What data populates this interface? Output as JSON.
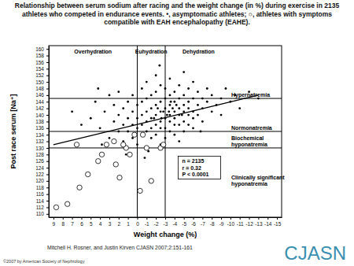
{
  "chart_data": {
    "type": "scatter",
    "title": "Relationship between serum sodium after racing and the weight change (in %) during exercise in 2135 athletes who competed in endurance events. •, asymptomatic athletes; ○, athletes with symptoms compatible with EAH encephalopathy (EAHE).",
    "x_label": "Weight change (%)",
    "y_label": "Post race serum [Na⁺]",
    "xlim": [
      9.5,
      -15.5
    ],
    "xticks": [
      9,
      8,
      7,
      6,
      5,
      4,
      3,
      2,
      1,
      0,
      -1,
      -2,
      -3,
      -4,
      -5,
      -6,
      -7,
      -8,
      -9,
      -10,
      -11,
      -12,
      -13,
      -14,
      -15
    ],
    "ylim": [
      109,
      161
    ],
    "yticks": [
      110,
      112,
      114,
      116,
      118,
      120,
      122,
      124,
      126,
      128,
      130,
      132,
      134,
      136,
      138,
      140,
      142,
      144,
      146,
      148,
      150,
      152,
      154,
      156,
      158,
      160
    ],
    "grid": false,
    "series": [
      {
        "color": "#000000",
        "marker": "dot",
        "x": [
          5,
          4.5,
          4,
          3.5,
          3,
          3,
          2.5,
          2.5,
          2,
          2,
          2,
          1.5,
          1.5,
          1.5,
          1,
          1,
          1,
          0.5,
          0.5,
          0.5,
          0.5,
          0,
          0,
          0,
          0,
          -0.5,
          -0.5,
          -0.5,
          -0.5,
          -0.5,
          -1,
          -1,
          -1,
          -1,
          -1,
          -1.5,
          -1.5,
          -1.5,
          -1.5,
          -1.5,
          -2,
          -2,
          -2,
          -2,
          -2,
          -2,
          -2.5,
          -2.5,
          -2.5,
          -2.5,
          -2.5,
          -2.5,
          -3,
          -3,
          -3,
          -3,
          -3,
          -3,
          -3.5,
          -3.5,
          -3.5,
          -3.5,
          -3.5,
          -3.5,
          -4,
          -4,
          -4,
          -4,
          -4,
          -4,
          -4.5,
          -4.5,
          -4.5,
          -4.5,
          -4.5,
          -4.5,
          -5,
          -5,
          -5,
          -5,
          -5,
          -5,
          -5.5,
          -5.5,
          -5.5,
          -5.5,
          -5.5,
          -6,
          -6,
          -6,
          -6,
          -6,
          -6.5,
          -6.5,
          -6.5,
          -7,
          -7,
          -7,
          -7.5,
          -7.5,
          -8,
          -8,
          -8.5,
          -9,
          -9,
          -9.5,
          -10,
          -10.5,
          -11,
          -12,
          -3.2,
          -3.8,
          -2.8,
          -4.2,
          -1.8,
          -2.2,
          -3.6,
          -4.8,
          -2.6,
          -3.4,
          6,
          7,
          3.8,
          1.2,
          -1.2,
          -0.8,
          4.2,
          -13,
          -6.8,
          -2.4
        ],
        "values": [
          139,
          144,
          136,
          141,
          146,
          133,
          138,
          143,
          135,
          140,
          147,
          137,
          142,
          132,
          139,
          144,
          135,
          141,
          137,
          146,
          133,
          139,
          143,
          136,
          131,
          140,
          144,
          137,
          148,
          134,
          141,
          138,
          145,
          135,
          150,
          139,
          142,
          136,
          146,
          133,
          140,
          143,
          137,
          147,
          134,
          152,
          141,
          138,
          144,
          136,
          149,
          131,
          139,
          142,
          145,
          136,
          148,
          133,
          140,
          143,
          138,
          146,
          135,
          151,
          141,
          139,
          144,
          137,
          147,
          134,
          142,
          140,
          145,
          137,
          149,
          132,
          141,
          143,
          138,
          146,
          135,
          153,
          140,
          144,
          142,
          137,
          148,
          141,
          145,
          139,
          136,
          150,
          143,
          140,
          147,
          142,
          145,
          138,
          144,
          148,
          141,
          146,
          143,
          145,
          140,
          148,
          144,
          146,
          142,
          147,
          140,
          142,
          141,
          143,
          139,
          142,
          144,
          140,
          139,
          141,
          137,
          141,
          131,
          128,
          129,
          127,
          148,
          145,
          135,
          155
        ]
      },
      {
        "color": "#000000",
        "marker": "open-circle",
        "x": [
          8.7,
          7.5,
          6.5,
          6.2,
          5.3,
          4.2,
          3.8,
          3.3,
          2.3,
          1.9,
          1.2,
          0.8,
          0.3,
          -0.3,
          -0.6,
          -1,
          -1.5,
          -2.5,
          -2.8,
          1.5,
          2.5
        ],
        "values": [
          112,
          113,
          131,
          118,
          122,
          126,
          128,
          131,
          125,
          121,
          130,
          128,
          134,
          117,
          134,
          130,
          120,
          130,
          131,
          131,
          132
        ]
      },
      {
        "type": "line",
        "color": "#000000",
        "line_style": "solid",
        "x": [
          9,
          -13
        ],
        "values": [
          131,
          146
        ]
      }
    ],
    "vlines": {
      "lines": [
        0,
        -3
      ],
      "labels": [
        "Overhydration",
        "Euhydration",
        "Dehydration"
      ]
    },
    "hlines": {
      "lines": [
        145,
        135,
        130
      ],
      "labels": [
        "Hypernatremia",
        "Normonatremia",
        "Biochemical hyponatremia",
        "Clinically significant hyponatremia"
      ]
    },
    "stats": [
      "n = 2135",
      "r = 0.32",
      "P < 0.0001"
    ],
    "source": "Mitchell H. Rosner, and Justin Kirven CJASN 2007;2:151-161",
    "copyright": "©2007 by American Society of Nephrology",
    "logo": "CJASN"
  }
}
